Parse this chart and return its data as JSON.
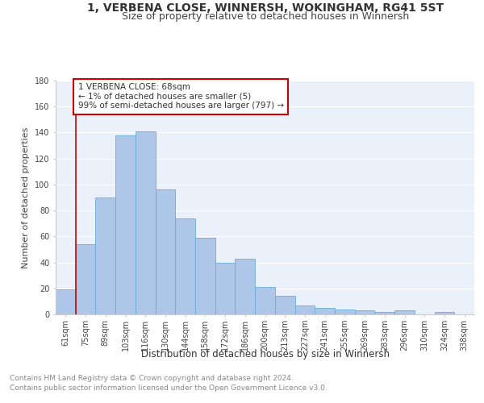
{
  "title": "1, VERBENA CLOSE, WINNERSH, WOKINGHAM, RG41 5ST",
  "subtitle": "Size of property relative to detached houses in Winnersh",
  "xlabel": "Distribution of detached houses by size in Winnersh",
  "ylabel": "Number of detached properties",
  "categories": [
    "61sqm",
    "75sqm",
    "89sqm",
    "103sqm",
    "116sqm",
    "130sqm",
    "144sqm",
    "158sqm",
    "172sqm",
    "186sqm",
    "200sqm",
    "213sqm",
    "227sqm",
    "241sqm",
    "255sqm",
    "269sqm",
    "283sqm",
    "296sqm",
    "310sqm",
    "324sqm",
    "338sqm"
  ],
  "values": [
    19,
    54,
    90,
    138,
    141,
    96,
    74,
    59,
    40,
    43,
    21,
    14,
    7,
    5,
    4,
    3,
    2,
    3,
    0,
    2,
    0
  ],
  "bar_color": "#aec6e8",
  "bar_edge_color": "#6aaed6",
  "annotation_text": "1 VERBENA CLOSE: 68sqm\n← 1% of detached houses are smaller (5)\n99% of semi-detached houses are larger (797) →",
  "annotation_box_color": "#ffffff",
  "annotation_box_edge": "#cc0000",
  "marker_line_color": "#cc0000",
  "ylim": [
    0,
    180
  ],
  "yticks": [
    0,
    20,
    40,
    60,
    80,
    100,
    120,
    140,
    160,
    180
  ],
  "footer_line1": "Contains HM Land Registry data © Crown copyright and database right 2024.",
  "footer_line2": "Contains public sector information licensed under the Open Government Licence v3.0.",
  "bg_color": "#eaf1fb",
  "grid_color": "#ffffff",
  "title_fontsize": 10,
  "subtitle_fontsize": 9,
  "xlabel_fontsize": 8.5,
  "ylabel_fontsize": 8,
  "tick_fontsize": 7,
  "annot_fontsize": 7.5,
  "footer_fontsize": 6.5
}
